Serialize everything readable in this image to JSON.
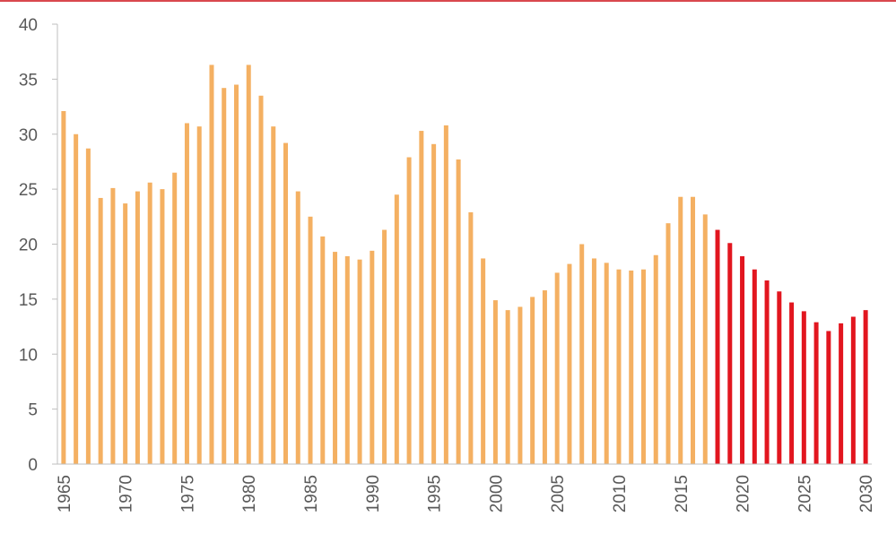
{
  "chart_data": {
    "type": "bar",
    "title": "",
    "xlabel": "",
    "ylabel": "",
    "ylim": [
      0,
      40
    ],
    "yticks": [
      0,
      5,
      10,
      15,
      20,
      25,
      30,
      35,
      40
    ],
    "xtick_labels": [
      "1965",
      "1970",
      "1975",
      "1980",
      "1985",
      "1990",
      "1995",
      "2000",
      "2005",
      "2010",
      "2015",
      "2020",
      "2025",
      "2030"
    ],
    "grid": false,
    "legend": "none",
    "colors": {
      "historical": "#F4B062",
      "forecast": "#E2161F",
      "top_rule": "#D9484E",
      "axis": "#BFBFBF"
    },
    "categories": [
      1965,
      1966,
      1967,
      1968,
      1969,
      1970,
      1971,
      1972,
      1973,
      1974,
      1975,
      1976,
      1977,
      1978,
      1979,
      1980,
      1981,
      1982,
      1983,
      1984,
      1985,
      1986,
      1987,
      1988,
      1989,
      1990,
      1991,
      1992,
      1993,
      1994,
      1995,
      1996,
      1997,
      1998,
      1999,
      2000,
      2001,
      2002,
      2003,
      2004,
      2005,
      2006,
      2007,
      2008,
      2009,
      2010,
      2011,
      2012,
      2013,
      2014,
      2015,
      2016,
      2017,
      2018,
      2019,
      2020,
      2021,
      2022,
      2023,
      2024,
      2025,
      2026,
      2027,
      2028,
      2029,
      2030
    ],
    "series": [
      {
        "segment": "historical",
        "x": [
          1965,
          1966,
          1967,
          1968,
          1969,
          1970,
          1971,
          1972,
          1973,
          1974,
          1975,
          1976,
          1977,
          1978,
          1979,
          1980,
          1981,
          1982,
          1983,
          1984,
          1985,
          1986,
          1987,
          1988,
          1989,
          1990,
          1991,
          1992,
          1993,
          1994,
          1995,
          1996,
          1997,
          1998,
          1999,
          2000,
          2001,
          2002,
          2003,
          2004,
          2005,
          2006,
          2007,
          2008,
          2009,
          2010,
          2011,
          2012,
          2013,
          2014,
          2015,
          2016,
          2017
        ],
        "values": [
          32.1,
          30.0,
          28.7,
          24.2,
          25.1,
          23.7,
          24.8,
          25.6,
          25.0,
          26.5,
          31.0,
          30.7,
          36.3,
          34.2,
          34.5,
          36.3,
          33.5,
          30.7,
          29.2,
          24.8,
          22.5,
          20.7,
          19.3,
          18.9,
          18.6,
          19.4,
          21.3,
          24.5,
          27.9,
          30.3,
          29.1,
          30.8,
          27.7,
          22.9,
          18.7,
          14.9,
          14.0,
          14.3,
          15.2,
          15.8,
          17.4,
          18.2,
          20.0,
          18.7,
          18.3,
          17.7,
          17.6,
          17.7,
          19.0,
          21.9,
          24.3,
          24.3,
          22.7
        ]
      },
      {
        "segment": "forecast",
        "x": [
          2018,
          2019,
          2020,
          2021,
          2022,
          2023,
          2024,
          2025,
          2026,
          2027,
          2028,
          2029,
          2030
        ],
        "values": [
          21.3,
          20.1,
          18.9,
          17.7,
          16.7,
          15.7,
          14.7,
          13.9,
          12.9,
          12.1,
          12.8,
          13.4,
          14.0
        ]
      }
    ]
  }
}
